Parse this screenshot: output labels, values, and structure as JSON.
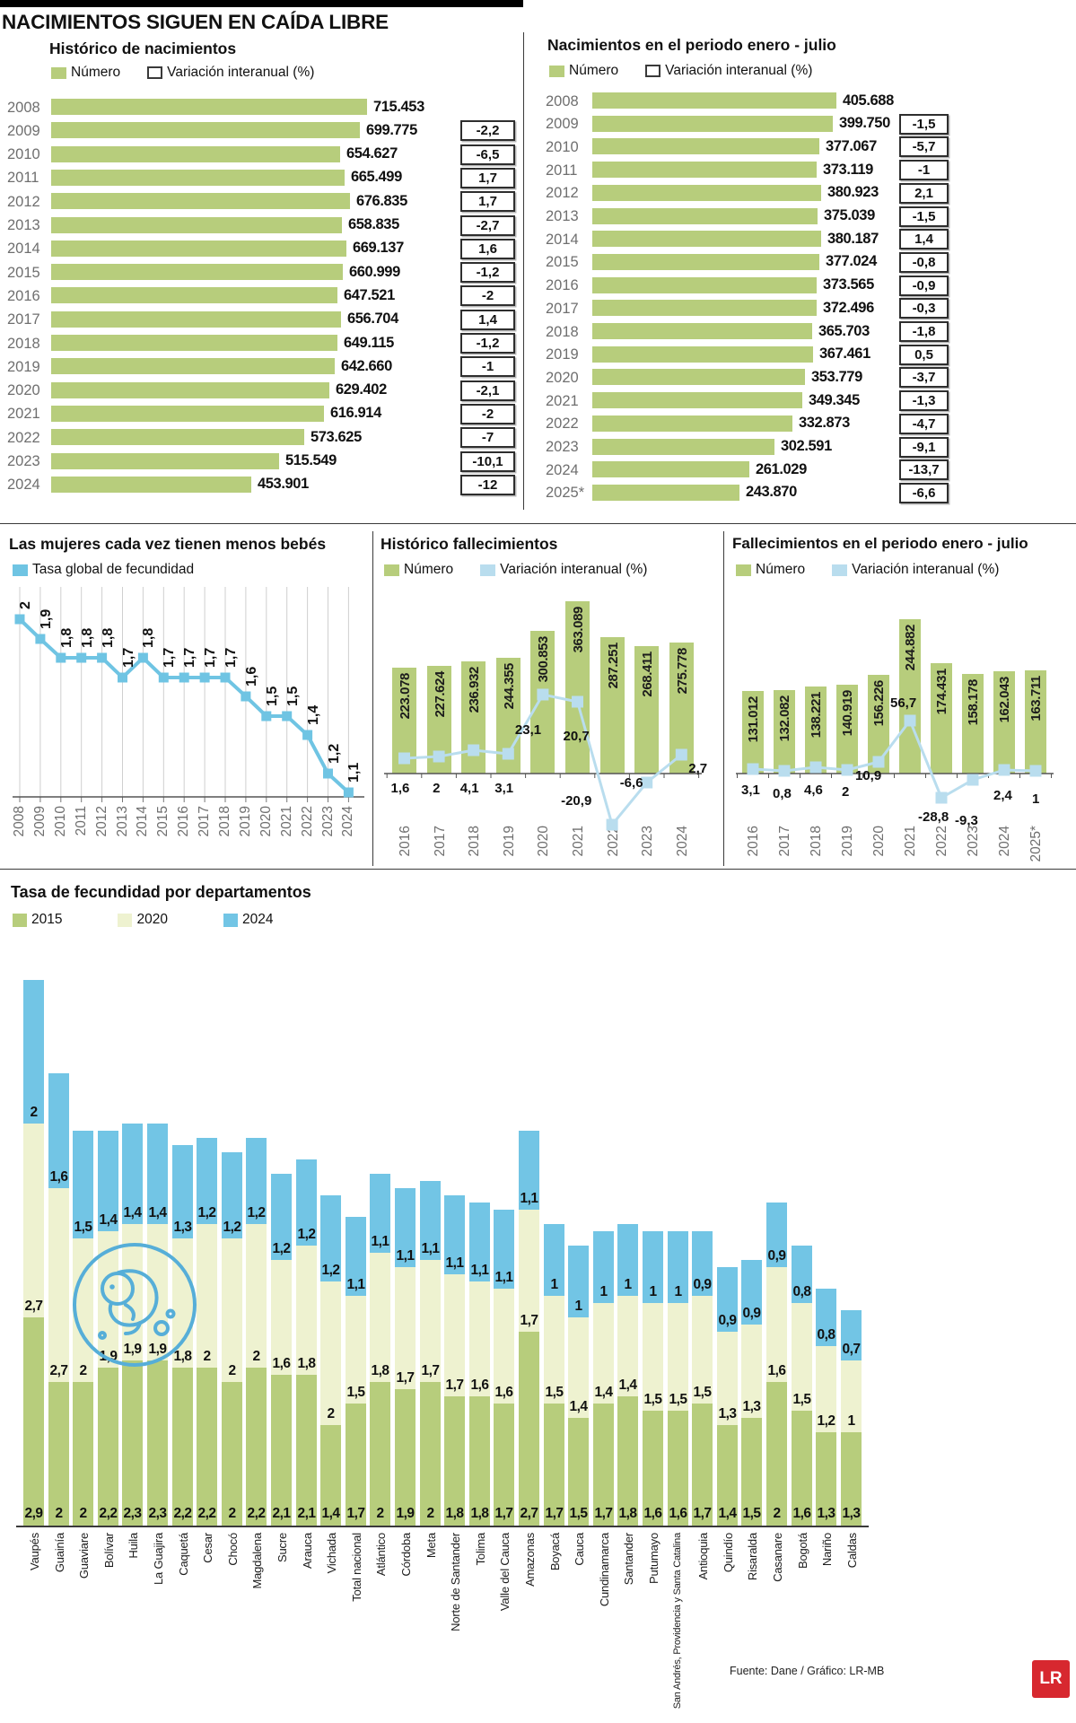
{
  "title": "NACIMIENTOS SIGUEN EN CAÍDA LIBRE",
  "source": "Fuente: Dane / Gráfico: LR-MB",
  "logo_text": "LR",
  "colors": {
    "green": "#b7cd7c",
    "pale": "#eef2d0",
    "blue": "#72c5e5",
    "line_blue": "#6fc4e3",
    "light_blue": "#b9ddee",
    "gray_text": "#6f6f6f",
    "red": "#d7282f"
  },
  "chart_data": [
    {
      "id": "historico_nacimientos",
      "type": "bar",
      "orientation": "horizontal",
      "title": "Histórico de nacimientos",
      "legend": [
        "Número",
        "Variación interanual (%)"
      ],
      "rows": [
        [
          "2008",
          "715.453",
          null
        ],
        [
          "2009",
          "699.775",
          -2.2
        ],
        [
          "2010",
          "654.627",
          -6.5
        ],
        [
          "2011",
          "665.499",
          1.7
        ],
        [
          "2012",
          "676.835",
          1.7
        ],
        [
          "2013",
          "658.835",
          -2.7
        ],
        [
          "2014",
          "669.137",
          1.6
        ],
        [
          "2015",
          "660.999",
          -1.2
        ],
        [
          "2016",
          "647.521",
          -2
        ],
        [
          "2017",
          "656.704",
          1.4
        ],
        [
          "2018",
          "649.115",
          -1.2
        ],
        [
          "2019",
          "642.660",
          -1
        ],
        [
          "2020",
          "629.402",
          -2.1
        ],
        [
          "2021",
          "616.914",
          -2
        ],
        [
          "2022",
          "573.625",
          -7
        ],
        [
          "2023",
          "515.549",
          -10.1
        ],
        [
          "2024",
          "453.901",
          -12
        ]
      ]
    },
    {
      "id": "nacimientos_enero_julio",
      "type": "bar",
      "orientation": "horizontal",
      "title": "Nacimientos en el periodo enero - julio",
      "legend": [
        "Número",
        "Variación interanual (%)"
      ],
      "rows": [
        [
          "2008",
          "405.688",
          null
        ],
        [
          "2009",
          "399.750",
          -1.5
        ],
        [
          "2010",
          "377.067",
          -5.7
        ],
        [
          "2011",
          "373.119",
          -1
        ],
        [
          "2012",
          "380.923",
          2.1
        ],
        [
          "2013",
          "375.039",
          -1.5
        ],
        [
          "2014",
          "380.187",
          1.4
        ],
        [
          "2015",
          "377.024",
          -0.8
        ],
        [
          "2016",
          "373.565",
          -0.9
        ],
        [
          "2017",
          "372.496",
          -0.3
        ],
        [
          "2018",
          "365.703",
          -1.8
        ],
        [
          "2019",
          "367.461",
          0.5
        ],
        [
          "2020",
          "353.779",
          -3.7
        ],
        [
          "2021",
          "349.345",
          -1.3
        ],
        [
          "2022",
          "332.873",
          -4.7
        ],
        [
          "2023",
          "302.591",
          -9.1
        ],
        [
          "2024",
          "261.029",
          -13.7
        ],
        [
          "2025*",
          "243.870",
          -6.6
        ]
      ]
    },
    {
      "id": "tasa_global_fecundidad",
      "type": "line",
      "title": "Las mujeres cada vez tienen menos bebés",
      "legend": [
        "Tasa global de fecundidad"
      ],
      "categories": [
        "2008",
        "2009",
        "2010",
        "2011",
        "2012",
        "2013",
        "2014",
        "2015",
        "2016",
        "2017",
        "2018",
        "2019",
        "2020",
        "2021",
        "2022",
        "2023",
        "2024"
      ],
      "values": [
        2,
        1.9,
        1.8,
        1.8,
        1.8,
        1.7,
        1.8,
        1.7,
        1.7,
        1.7,
        1.7,
        1.6,
        1.5,
        1.5,
        1.4,
        1.2,
        1.1
      ]
    },
    {
      "id": "historico_fallecimientos",
      "type": "bar+line",
      "title": "Histórico fallecimientos",
      "legend": [
        "Número",
        "Variación interanual (%)"
      ],
      "categories": [
        "2016",
        "2017",
        "2018",
        "2019",
        "2020",
        "2021",
        "2022",
        "2023",
        "2024"
      ],
      "bar_values": [
        "223.078",
        "227.624",
        "236.932",
        "244.355",
        "300.853",
        "363.089",
        "287.251",
        "268.411",
        "275.778"
      ],
      "variation": [
        1.6,
        2,
        4.1,
        3.1,
        23.1,
        20.7,
        -20.9,
        -6.6,
        2.7
      ]
    },
    {
      "id": "fallecimientos_enero_julio",
      "type": "bar+line",
      "title": "Fallecimientos en el periodo enero - julio",
      "legend": [
        "Número",
        "Variación interanual (%)"
      ],
      "categories": [
        "2016",
        "2017",
        "2018",
        "2019",
        "2020",
        "2021",
        "2022",
        "2023",
        "2024",
        "2025*"
      ],
      "bar_values": [
        "131.012",
        "132.082",
        "138.221",
        "140.919",
        "156.226",
        "244.882",
        "174.431",
        "158.178",
        "162.043",
        "163.711"
      ],
      "variation": [
        3.1,
        0.8,
        4.6,
        2,
        10.9,
        56.7,
        -28.8,
        -9.3,
        2.4,
        1
      ]
    },
    {
      "id": "fecundidad_departamentos",
      "type": "stacked-bar",
      "title": "Tasa de fecundidad por departamentos",
      "legend": [
        "2015",
        "2020",
        "2024"
      ],
      "categories": [
        "Vaupés",
        "Guainía",
        "Guaviare",
        "Bolívar",
        "Huila",
        "La Guajira",
        "Caquetá",
        "Cesar",
        "Chocó",
        "Magdalena",
        "Sucre",
        "Arauca",
        "Vichada",
        "Total nacional",
        "Atlántico",
        "Córdoba",
        "Meta",
        "Norte de Santander",
        "Tolima",
        "Valle del Cauca",
        "Amazonas",
        "Boyacá",
        "Cauca",
        "Cundinamarca",
        "Santander",
        "Putumayo",
        "San Andrés, Providencia y Santa Catalina",
        "Antioquia",
        "Quindío",
        "Risaralda",
        "Casanare",
        "Bogotá",
        "Nariño",
        "Caldas"
      ],
      "series": [
        {
          "name": "2015",
          "values": [
            2.9,
            2,
            2,
            2.2,
            2.3,
            2.3,
            2.2,
            2.2,
            2,
            2.2,
            2.1,
            2.1,
            1.4,
            1.7,
            2,
            1.9,
            2,
            1.8,
            1.8,
            1.7,
            2.7,
            1.7,
            1.5,
            1.7,
            1.8,
            1.6,
            1.6,
            1.7,
            1.4,
            1.5,
            2,
            1.6,
            1.3,
            1.3
          ]
        },
        {
          "name": "2020",
          "values": [
            2.7,
            2.7,
            2,
            1.9,
            1.9,
            1.9,
            1.8,
            2,
            2,
            2,
            1.6,
            1.8,
            2,
            1.5,
            1.8,
            1.7,
            1.7,
            1.7,
            1.6,
            1.6,
            1.7,
            1.5,
            1.4,
            1.4,
            1.4,
            1.5,
            1.5,
            1.5,
            1.3,
            1.3,
            1.6,
            1.5,
            1.2,
            1
          ]
        },
        {
          "name": "2024",
          "values": [
            2,
            1.6,
            1.5,
            1.4,
            1.4,
            1.4,
            1.3,
            1.2,
            1.2,
            1.2,
            1.2,
            1.2,
            1.2,
            1.1,
            1.1,
            1.1,
            1.1,
            1.1,
            1.1,
            1.1,
            1.1,
            1,
            1,
            1,
            1,
            1,
            1,
            0.9,
            0.9,
            0.9,
            0.9,
            0.8,
            0.8,
            0.7
          ]
        }
      ]
    }
  ]
}
